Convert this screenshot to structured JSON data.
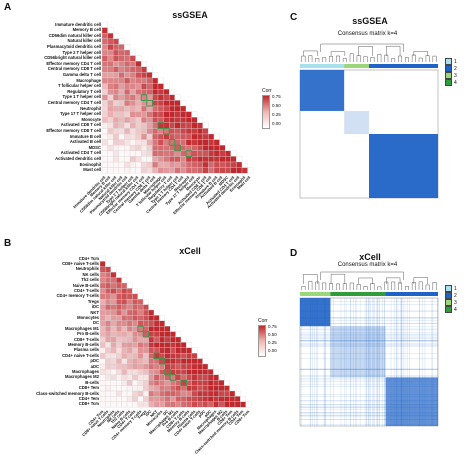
{
  "panels": {
    "A": {
      "letter": "A",
      "title": "ssGSEA",
      "cells": [
        "Immature dendritic cell",
        "Memory B cell",
        "CD56dim natural killer cell",
        "Natural killer cell",
        "Plasmacytoid dendritic cell",
        "Type 2 T helper cell",
        "CD56bright natural killer cell",
        "Effector memory CD4 T cell",
        "Central memory CD8 T cell",
        "Gamma delta T cell",
        "Macrophage",
        "T follicular helper cell",
        "Regulatory T cell",
        "Type 1 T helper cell",
        "Central memory CD4 T cell",
        "Neutrophil",
        "Type 17 T helper cell",
        "Monocyte",
        "Activated CD8 T cell",
        "Effector memory CD8 T cell",
        "Immature B cell",
        "Activated B cell",
        "MDSC",
        "Activated CD4 T cell",
        "Activated dendritic cell",
        "Eosinophil",
        "Mast cell"
      ],
      "legend": {
        "title": "Corr",
        "ticks": [
          "0.75",
          "0.50",
          "0.25",
          "0.00"
        ]
      }
    },
    "B": {
      "letter": "B",
      "title": "xCell",
      "cells": [
        "CD4+ Tcm",
        "CD8+ naive T-cells",
        "Neutrophils",
        "NK cells",
        "Th2 cells",
        "Naive B-cells",
        "CD4+ T-cells",
        "CD4+ memory T-cells",
        "Tregs",
        "iDC",
        "NKT",
        "Monocytes",
        "DC",
        "Macrophages M1",
        "Pro B-cells",
        "CD8+ T-cells",
        "Memory B-cells",
        "Plasma cells",
        "CD4+ naive T-cells",
        "pDC",
        "aDC",
        "Macrophages",
        "Macrophages M2",
        "B-cells",
        "CD8+ Tem",
        "Class-switched memory B-cells",
        "CD4+ Tem",
        "CD8+ Tcm"
      ],
      "legend": {
        "title": "Corr",
        "ticks": [
          "0.75",
          "0.50",
          "0.25",
          "0.00"
        ]
      }
    },
    "C": {
      "letter": "C",
      "title": "ssGSEA",
      "subtitle": "Consensus matrix k=4",
      "legend": [
        "1",
        "2",
        "3",
        "4"
      ]
    },
    "D": {
      "letter": "D",
      "title": "xCell",
      "subtitle": "Consensus matrix k=4",
      "legend": [
        "1",
        "2",
        "3",
        "4"
      ]
    }
  },
  "colors": {
    "high": "#c0282d",
    "low": "#ffffff",
    "highlight": "#2e9e4b",
    "consensus": "#1f63c6",
    "cluster1": "#a8e0ec",
    "cluster2": "#1f63c6",
    "cluster3": "#9bd67a",
    "cluster4": "#2f9d3a"
  }
}
